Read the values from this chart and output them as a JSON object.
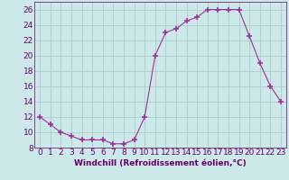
{
  "x": [
    0,
    1,
    2,
    3,
    4,
    5,
    6,
    7,
    8,
    9,
    10,
    11,
    12,
    13,
    14,
    15,
    16,
    17,
    18,
    19,
    20,
    21,
    22,
    23
  ],
  "y": [
    12,
    11,
    10,
    9.5,
    9,
    9,
    9,
    8.5,
    8.5,
    9,
    12,
    20,
    23,
    23.5,
    24.5,
    25,
    26,
    26,
    26,
    26,
    22.5,
    19,
    16,
    14
  ],
  "line_color": "#993399",
  "marker": "+",
  "marker_size": 4,
  "marker_lw": 1.2,
  "bg_color": "#cce8e8",
  "grid_color": "#aacccc",
  "xlabel": "Windchill (Refroidissement éolien,°C)",
  "ylim": [
    8,
    27
  ],
  "xlim": [
    -0.5,
    23.5
  ],
  "yticks": [
    8,
    10,
    12,
    14,
    16,
    18,
    20,
    22,
    24,
    26
  ],
  "xticks": [
    0,
    1,
    2,
    3,
    4,
    5,
    6,
    7,
    8,
    9,
    10,
    11,
    12,
    13,
    14,
    15,
    16,
    17,
    18,
    19,
    20,
    21,
    22,
    23
  ],
  "label_color": "#660066",
  "axis_color": "#660066",
  "font_size_xlabel": 6.5,
  "font_size_ticks": 6.5
}
